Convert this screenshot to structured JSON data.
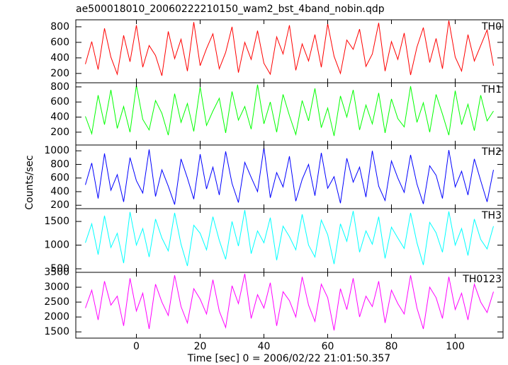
{
  "chart_data": [
    {
      "type": "line",
      "title": "ae500018010_20060222210150_wam2_bst_4band_nobin.qdp",
      "name": "TH0",
      "color": "#ff0000",
      "x": [
        -16,
        -14,
        -12,
        -10,
        -8,
        -6,
        -4,
        -2,
        0,
        2,
        4,
        6,
        8,
        10,
        12,
        14,
        16,
        18,
        20,
        22,
        24,
        26,
        28,
        30,
        32,
        34,
        36,
        38,
        40,
        42,
        44,
        46,
        48,
        50,
        52,
        54,
        56,
        58,
        60,
        62,
        64,
        66,
        68,
        70,
        72,
        74,
        76,
        78,
        80,
        82,
        84,
        86,
        88,
        90,
        92,
        94,
        96,
        98,
        100,
        102,
        104,
        106,
        108,
        110,
        112
      ],
      "values": [
        320,
        610,
        250,
        780,
        410,
        190,
        690,
        350,
        820,
        280,
        560,
        430,
        170,
        740,
        390,
        640,
        230,
        860,
        300,
        520,
        710,
        260,
        470,
        800,
        210,
        600,
        380,
        750,
        330,
        190,
        670,
        450,
        820,
        240,
        580,
        360,
        700,
        280,
        840,
        420,
        200,
        630,
        510,
        770,
        290,
        450,
        850,
        230,
        610,
        380,
        720,
        180,
        540,
        790,
        340,
        650,
        260,
        880,
        410,
        230,
        700,
        360,
        560,
        760,
        300
      ],
      "xlim": [
        -19,
        115
      ],
      "xticks": [
        0,
        20,
        40,
        60,
        80,
        100
      ],
      "ylim": [
        80,
        890
      ],
      "yticks": [
        200,
        400,
        600,
        800
      ]
    },
    {
      "type": "line",
      "name": "TH1",
      "color": "#00ff00",
      "x": [
        -16,
        -14,
        -12,
        -10,
        -8,
        -6,
        -4,
        -2,
        0,
        2,
        4,
        6,
        8,
        10,
        12,
        14,
        16,
        18,
        20,
        22,
        24,
        26,
        28,
        30,
        32,
        34,
        36,
        38,
        40,
        42,
        44,
        46,
        48,
        50,
        52,
        54,
        56,
        58,
        60,
        62,
        64,
        66,
        68,
        70,
        72,
        74,
        76,
        78,
        80,
        82,
        84,
        86,
        88,
        90,
        92,
        94,
        96,
        98,
        100,
        102,
        104,
        106,
        108,
        110,
        112
      ],
      "values": [
        410,
        180,
        690,
        300,
        760,
        250,
        540,
        200,
        820,
        370,
        230,
        620,
        450,
        160,
        710,
        330,
        580,
        210,
        800,
        290,
        480,
        650,
        190,
        740,
        360,
        540,
        240,
        830,
        310,
        600,
        200,
        700,
        420,
        170,
        620,
        350,
        780,
        260,
        520,
        150,
        680,
        400,
        760,
        230,
        560,
        310,
        720,
        190,
        640,
        380,
        270,
        810,
        330,
        590,
        200,
        700,
        440,
        160,
        750,
        300,
        570,
        220,
        690,
        350,
        480
      ],
      "xlim": [
        -19,
        115
      ],
      "xticks": [
        0,
        20,
        40,
        60,
        80,
        100
      ],
      "ylim": [
        30,
        855
      ],
      "yticks": [
        200,
        400,
        600,
        800
      ]
    },
    {
      "type": "line",
      "ylabel": "Counts/sec",
      "name": "TH2",
      "color": "#0000ff",
      "x": [
        -16,
        -14,
        -12,
        -10,
        -8,
        -6,
        -4,
        -2,
        0,
        2,
        4,
        6,
        8,
        10,
        12,
        14,
        16,
        18,
        20,
        22,
        24,
        26,
        28,
        30,
        32,
        34,
        36,
        38,
        40,
        42,
        44,
        46,
        48,
        50,
        52,
        54,
        56,
        58,
        60,
        62,
        64,
        66,
        68,
        70,
        72,
        74,
        76,
        78,
        80,
        82,
        84,
        86,
        88,
        90,
        92,
        94,
        96,
        98,
        100,
        102,
        104,
        106,
        108,
        110,
        112
      ],
      "values": [
        500,
        820,
        300,
        960,
        420,
        650,
        250,
        900,
        560,
        380,
        1020,
        330,
        720,
        480,
        210,
        880,
        600,
        290,
        950,
        440,
        760,
        350,
        990,
        520,
        240,
        830,
        610,
        400,
        1050,
        310,
        680,
        470,
        920,
        260,
        580,
        800,
        340,
        970,
        450,
        620,
        230,
        890,
        540,
        760,
        320,
        1000,
        480,
        270,
        850,
        600,
        390,
        940,
        510,
        220,
        780,
        640,
        300,
        1010,
        470,
        700,
        350,
        880,
        560,
        250,
        720
      ],
      "xlim": [
        -19,
        115
      ],
      "xticks": [
        0,
        20,
        40,
        60,
        80,
        100
      ],
      "ylim": [
        150,
        1085
      ],
      "yticks": [
        200,
        400,
        600,
        800,
        1000
      ]
    },
    {
      "type": "line",
      "name": "TH3",
      "color": "#00ffff",
      "x": [
        -16,
        -14,
        -12,
        -10,
        -8,
        -6,
        -4,
        -2,
        0,
        2,
        4,
        6,
        8,
        10,
        12,
        14,
        16,
        18,
        20,
        22,
        24,
        26,
        28,
        30,
        32,
        34,
        36,
        38,
        40,
        42,
        44,
        46,
        48,
        50,
        52,
        54,
        56,
        58,
        60,
        62,
        64,
        66,
        68,
        70,
        72,
        74,
        76,
        78,
        80,
        82,
        84,
        86,
        88,
        90,
        92,
        94,
        96,
        98,
        100,
        102,
        104,
        106,
        108,
        110,
        112
      ],
      "values": [
        1050,
        1450,
        800,
        1620,
        950,
        1250,
        620,
        1700,
        1000,
        1350,
        750,
        1550,
        1150,
        880,
        1680,
        1020,
        560,
        1420,
        1250,
        900,
        1600,
        1100,
        700,
        1500,
        980,
        1740,
        820,
        1300,
        1050,
        1580,
        680,
        1400,
        1180,
        900,
        1650,
        1000,
        750,
        1530,
        1220,
        600,
        1450,
        1080,
        1720,
        850,
        1300,
        1020,
        1600,
        720,
        1380,
        1150,
        930,
        1680,
        1050,
        580,
        1480,
        1260,
        850,
        1710,
        1000,
        1350,
        780,
        1550,
        1120,
        920,
        1400
      ],
      "xlim": [
        -19,
        115
      ],
      "xticks": [
        0,
        20,
        40,
        60,
        80,
        100
      ],
      "ylim": [
        425,
        1770
      ],
      "yticks": [
        500,
        1000,
        1500
      ]
    },
    {
      "type": "line",
      "xlabel": "Time [sec] 0 = 2006/02/22 21:01:50.357",
      "name": "TH0123",
      "color": "#ff00ff",
      "x": [
        -16,
        -14,
        -12,
        -10,
        -8,
        -6,
        -4,
        -2,
        0,
        2,
        4,
        6,
        8,
        10,
        12,
        14,
        16,
        18,
        20,
        22,
        24,
        26,
        28,
        30,
        32,
        34,
        36,
        38,
        40,
        42,
        44,
        46,
        48,
        50,
        52,
        54,
        56,
        58,
        60,
        62,
        64,
        66,
        68,
        70,
        72,
        74,
        76,
        78,
        80,
        82,
        84,
        86,
        88,
        90,
        92,
        94,
        96,
        98,
        100,
        102,
        104,
        106,
        108,
        110,
        112
      ],
      "values": [
        2300,
        2900,
        1900,
        3200,
        2400,
        2700,
        1700,
        3300,
        2200,
        2800,
        1600,
        3100,
        2500,
        2050,
        3400,
        2350,
        1800,
        2950,
        2600,
        2100,
        3250,
        2200,
        1650,
        3050,
        2450,
        3450,
        1950,
        2750,
        2300,
        3150,
        1700,
        2850,
        2550,
        2000,
        3350,
        2400,
        1850,
        3100,
        2650,
        1550,
        2950,
        2250,
        3300,
        2000,
        2700,
        2350,
        3200,
        1800,
        2900,
        2450,
        2100,
        3400,
        2300,
        1600,
        3000,
        2650,
        1950,
        3350,
        2250,
        2800,
        1900,
        3100,
        2500,
        2150,
        2850
      ],
      "xlim": [
        -19,
        115
      ],
      "xticks": [
        0,
        20,
        40,
        60,
        80,
        100
      ],
      "ylim": [
        1290,
        3500
      ],
      "yticks": [
        1500,
        2000,
        2500,
        3000,
        3500
      ]
    }
  ]
}
